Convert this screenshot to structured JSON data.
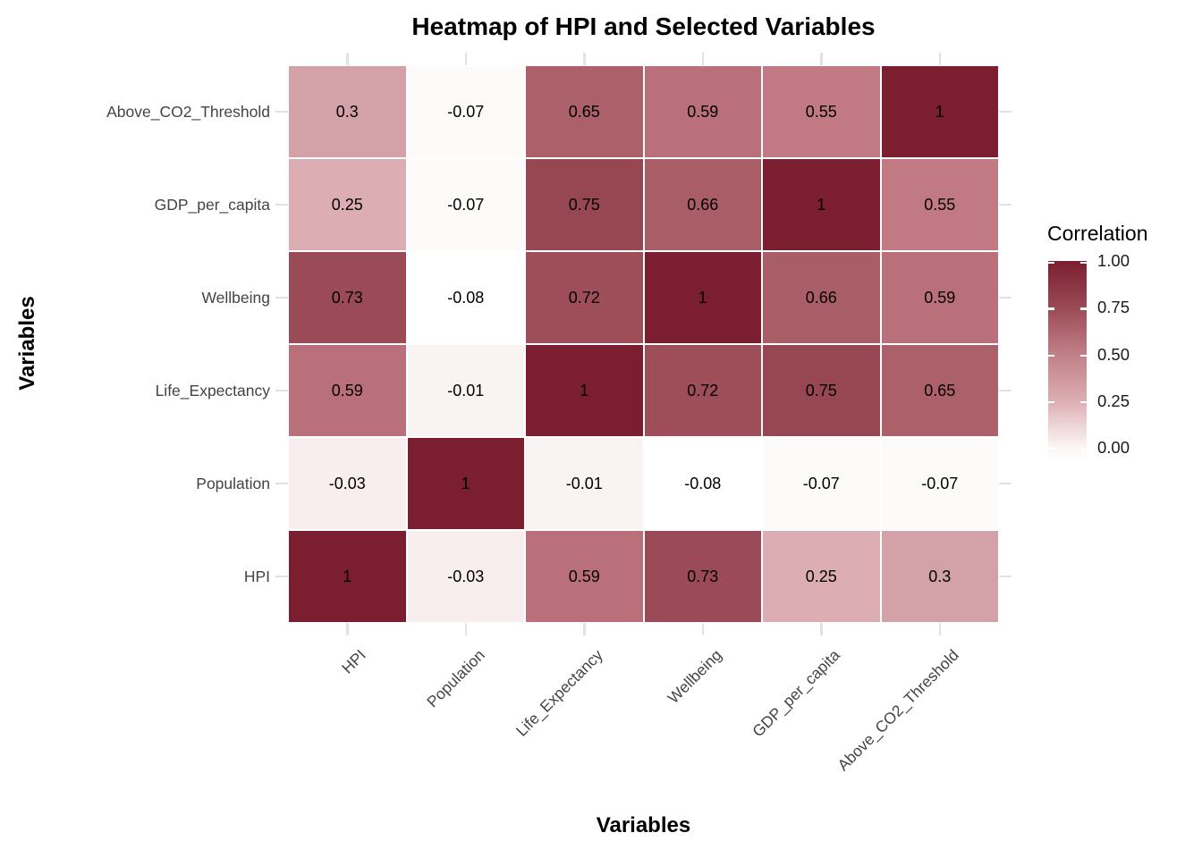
{
  "title": "Heatmap of HPI and Selected Variables",
  "x_axis_title": "Variables",
  "y_axis_title": "Variables",
  "chart_data": {
    "type": "heatmap",
    "title": "Heatmap of HPI and Selected Variables",
    "xlabel": "Variables",
    "ylabel": "Variables",
    "x_categories": [
      "HPI",
      "Population",
      "Life_Expectancy",
      "Wellbeing",
      "GDP_per_capita",
      "Above_CO2_Threshold"
    ],
    "y_categories_top_to_bottom": [
      "Above_CO2_Threshold",
      "GDP_per_capita",
      "Wellbeing",
      "Life_Expectancy",
      "Population",
      "HPI"
    ],
    "rows_top_to_bottom": [
      [
        "0.3",
        "-0.07",
        "0.65",
        "0.59",
        "0.55",
        "1"
      ],
      [
        "0.25",
        "-0.07",
        "0.75",
        "0.66",
        "1",
        "0.55"
      ],
      [
        "0.73",
        "-0.08",
        "0.72",
        "1",
        "0.66",
        "0.59"
      ],
      [
        "0.59",
        "-0.01",
        "1",
        "0.72",
        "0.75",
        "0.65"
      ],
      [
        "-0.03",
        "1",
        "-0.01",
        "-0.08",
        "-0.07",
        "-0.07"
      ],
      [
        "1",
        "-0.03",
        "0.59",
        "0.73",
        "0.25",
        "0.3"
      ]
    ],
    "legend": {
      "title": "Correlation",
      "tick_labels": [
        "1.00",
        "0.75",
        "0.50",
        "0.25",
        "0.00"
      ],
      "tick_values": [
        1.0,
        0.75,
        0.5,
        0.25,
        0.0
      ],
      "domain": [
        -0.08,
        1.0
      ],
      "position": "right"
    },
    "grid": "stubs-at-category-centers"
  },
  "colors": {
    "high": "#7A1E30",
    "low": "#FFFFFF",
    "value_fill": {
      "1": "#7A1E30",
      "0.75": "#974751",
      "0.73": "#9B4B57",
      "0.72": "#9D4E59",
      "0.66": "#A95D67",
      "0.65": "#AC606A",
      "0.59": "#BA707A",
      "0.55": "#C17A83",
      "0.3": "#D2A2A8",
      "0.25": "#DCAEB3",
      "-0.01": "#FAF3F3",
      "-0.03": "#F8EEEF",
      "-0.07": "#FDFAFA",
      "-0.08": "#FFFFFF"
    },
    "gradient_stops": [
      [
        "0%",
        "#7A1E30"
      ],
      [
        "23.1%",
        "#9A4A55"
      ],
      [
        "46.3%",
        "#C18088"
      ],
      [
        "69.4%",
        "#DCAEB3"
      ],
      [
        "92.6%",
        "#FCF7F7"
      ],
      [
        "100%",
        "#FFFFFF"
      ]
    ],
    "cell_border": "#FFFFFF",
    "grid_stub": "#E2E2E2",
    "axis_text": "#444444",
    "cell_text": "#000000",
    "background": "#FFFFFF"
  }
}
